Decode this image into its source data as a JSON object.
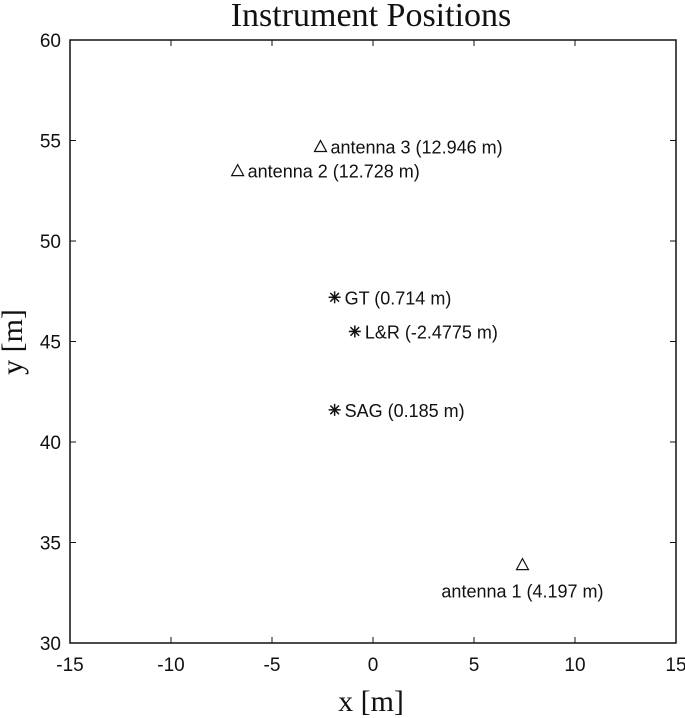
{
  "chart_data": {
    "type": "scatter",
    "title": "Instrument Positions",
    "xlabel": "x [m]",
    "ylabel": "y [m]",
    "xlim": [
      -15,
      15
    ],
    "ylim": [
      30,
      60
    ],
    "xticks": [
      -15,
      -10,
      -5,
      0,
      5,
      10,
      15
    ],
    "yticks": [
      30,
      35,
      40,
      45,
      50,
      55,
      60
    ],
    "grid": false,
    "points": [
      {
        "x": 7.4,
        "y": 33.9,
        "marker": "triangle",
        "label": "antenna 1 (4.197 m)",
        "label_pos": "below"
      },
      {
        "x": -6.7,
        "y": 53.5,
        "marker": "triangle",
        "label": "antenna 2 (12.728 m)",
        "label_pos": "right"
      },
      {
        "x": -2.6,
        "y": 54.7,
        "marker": "triangle",
        "label": "antenna 3 (12.946 m)",
        "label_pos": "right"
      },
      {
        "x": -1.9,
        "y": 47.2,
        "marker": "asterisk",
        "label": "GT (0.714 m)",
        "label_pos": "right"
      },
      {
        "x": -0.9,
        "y": 45.5,
        "marker": "asterisk",
        "label": "L&R (-2.4775 m)",
        "label_pos": "right"
      },
      {
        "x": -1.9,
        "y": 41.6,
        "marker": "asterisk",
        "label": "SAG (0.185 m)",
        "label_pos": "right"
      }
    ]
  }
}
